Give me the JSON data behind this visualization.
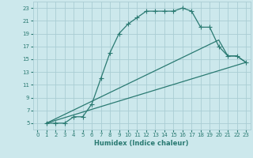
{
  "xlabel": "Humidex (Indice chaleur)",
  "bg_color": "#cce8ec",
  "grid_color": "#aacdd4",
  "line_color": "#2a7a72",
  "xlim": [
    -0.5,
    23.5
  ],
  "ylim": [
    4,
    24
  ],
  "xticks": [
    0,
    1,
    2,
    3,
    4,
    5,
    6,
    7,
    8,
    9,
    10,
    11,
    12,
    13,
    14,
    15,
    16,
    17,
    18,
    19,
    20,
    21,
    22,
    23
  ],
  "yticks": [
    5,
    7,
    9,
    11,
    13,
    15,
    17,
    19,
    21,
    23
  ],
  "line1_x": [
    1,
    2,
    3,
    4,
    5,
    6,
    7,
    8,
    9,
    10,
    11,
    12,
    13,
    14,
    15,
    16,
    17,
    18,
    19,
    20,
    21,
    22,
    23
  ],
  "line1_y": [
    5,
    5,
    5,
    6,
    6,
    8,
    12,
    16,
    19,
    20.5,
    21.5,
    22.5,
    22.5,
    22.5,
    22.5,
    23,
    22.5,
    20,
    20,
    17,
    15.5,
    15.5,
    14.5
  ],
  "line2_x": [
    1,
    23
  ],
  "line2_y": [
    5,
    14.5
  ],
  "line3_x": [
    1,
    20,
    21,
    22,
    23
  ],
  "line3_y": [
    5,
    18,
    15.5,
    15.5,
    14.5
  ],
  "xlabel_fontsize": 6,
  "tick_fontsize": 5,
  "marker": "+",
  "markersize": 4,
  "linewidth": 0.9
}
